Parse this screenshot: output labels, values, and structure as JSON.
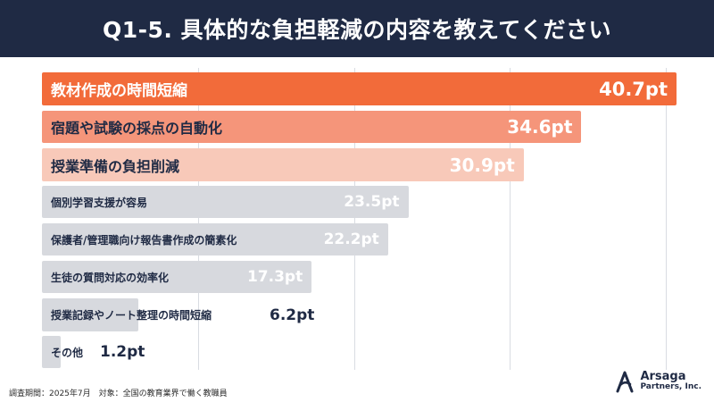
{
  "header": {
    "title": "Q1-5. 具体的な負担軽減の内容を教えてください"
  },
  "chart_data": {
    "type": "bar",
    "orientation": "horizontal",
    "title": "Q1-5. 具体的な負担軽減の内容を教えてください",
    "value_unit": "pt",
    "xlim": [
      0,
      40.7
    ],
    "grid": true,
    "categories": [
      "教材作成の時間短縮",
      "宿題や試験の採点の自動化",
      "授業準備の負担削減",
      "個別学習支援が容易",
      "保護者/管理職向け報告書作成の簡素化",
      "生徒の質問対応の効率化",
      "授業記録やノート整理の時間短縮",
      "その他"
    ],
    "values": [
      40.7,
      34.6,
      30.9,
      23.5,
      22.2,
      17.3,
      6.2,
      1.2
    ],
    "value_labels": [
      "40.7pt",
      "34.6pt",
      "30.9pt",
      "23.5pt",
      "22.2pt",
      "17.3pt",
      "6.2pt",
      "1.2pt"
    ],
    "colors": [
      "#f26b3a",
      "#f5957a",
      "#f8c9b9",
      "#d7d9de",
      "#d7d9de",
      "#d7d9de",
      "#d7d9de",
      "#d7d9de"
    ]
  },
  "footer": {
    "note": "調査期間：2025年7月　対象：全国の教育業界で働く教職員"
  },
  "brand": {
    "name": "Arsaga",
    "sub": "Partners, Inc."
  }
}
